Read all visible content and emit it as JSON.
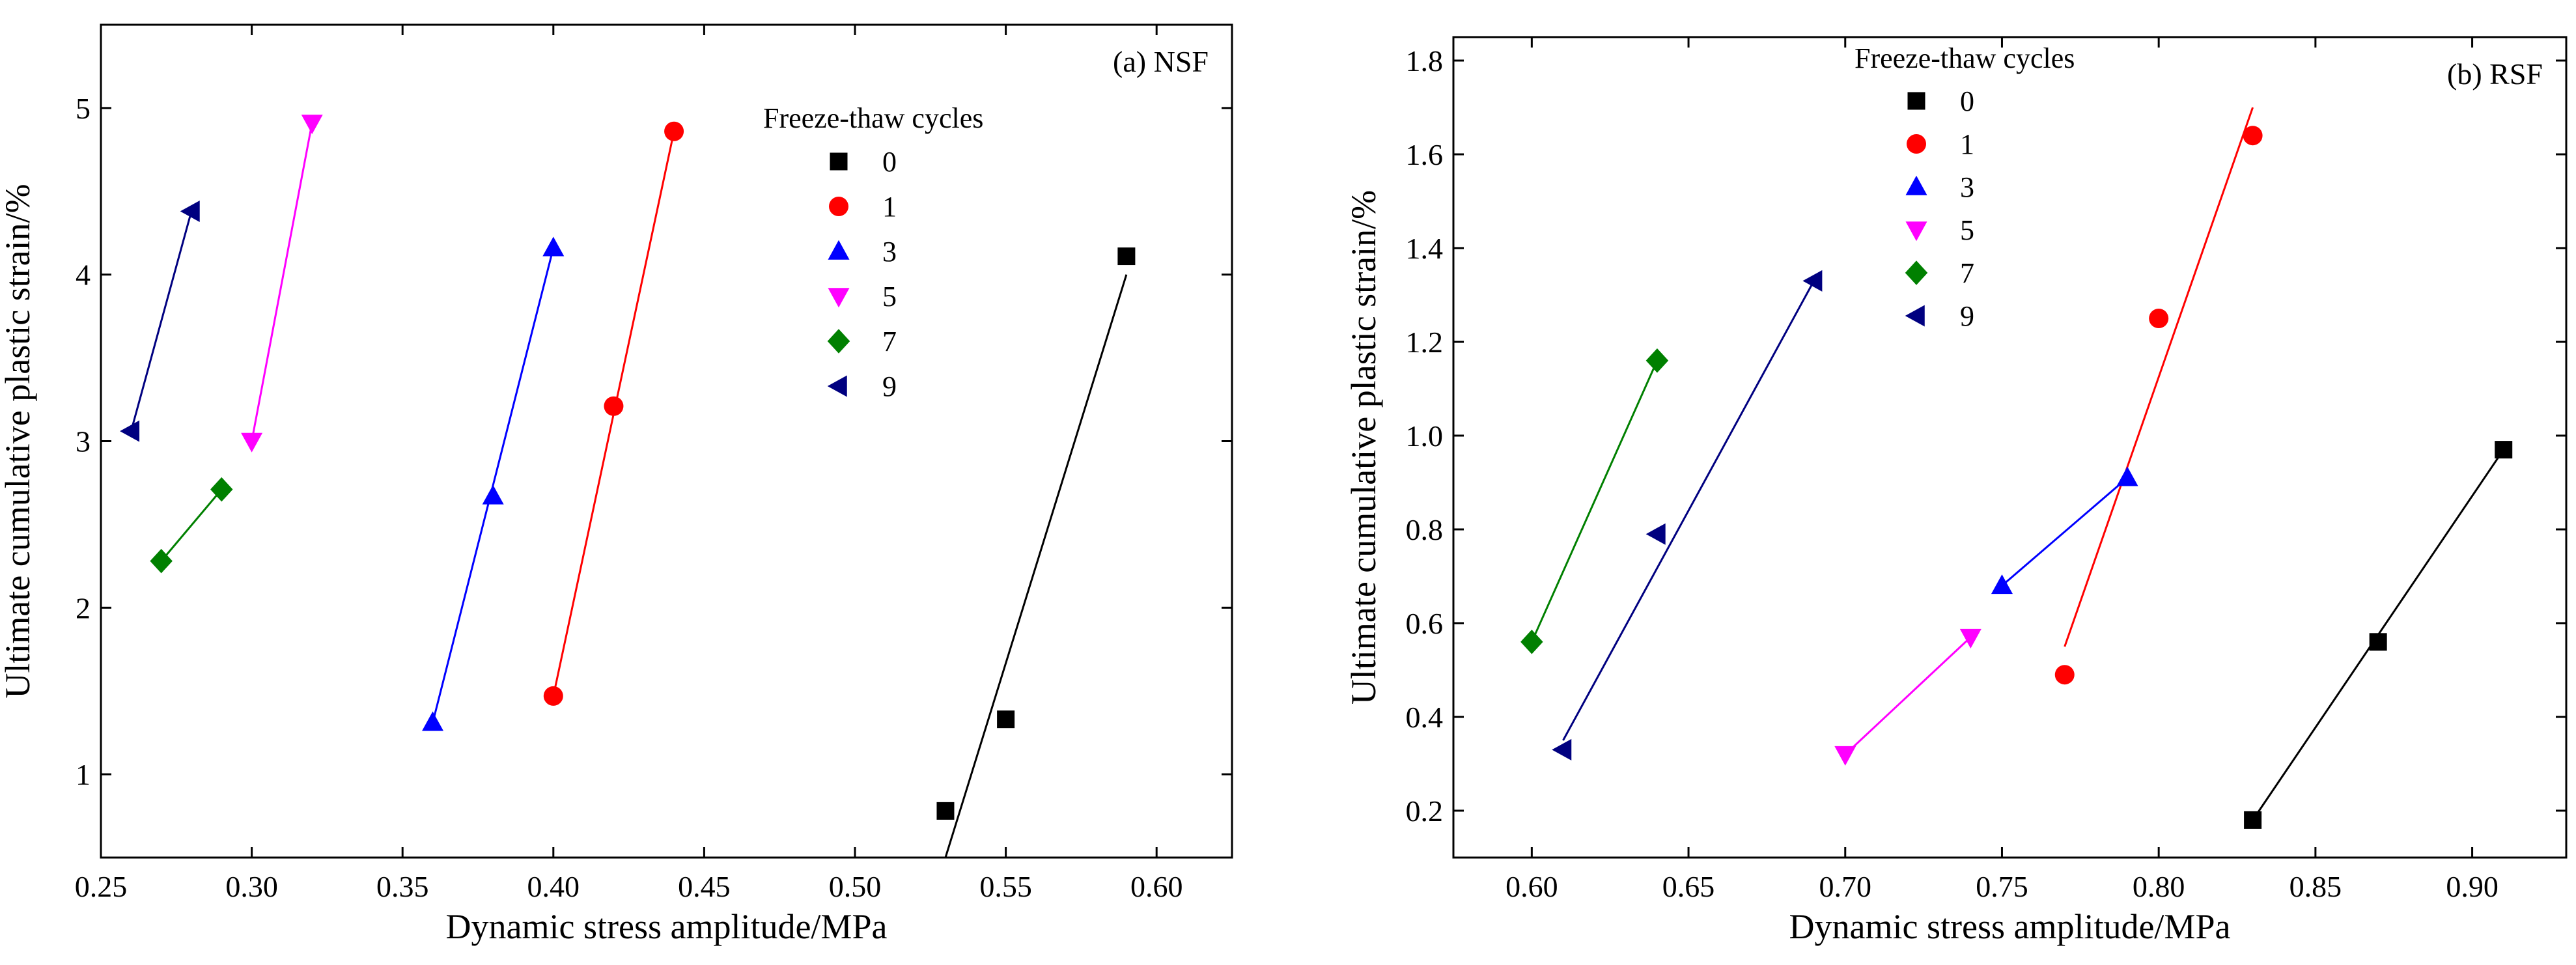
{
  "chart_data": [
    {
      "type": "scatter",
      "panel_label": "(a) NSF",
      "xlabel": "Dynamic stress amplitude/MPa",
      "ylabel": "Ultimate cumulative plastic strain/%",
      "xlim": [
        0.25,
        0.625
      ],
      "ylim": [
        0.5,
        5.5
      ],
      "xticks": [
        "0.25",
        "0.30",
        "0.35",
        "0.40",
        "0.45",
        "0.50",
        "0.55",
        "0.60"
      ],
      "yticks": [
        "1",
        "2",
        "3",
        "4",
        "5"
      ],
      "legend_title": "Freeze-thaw cycles",
      "legend_position": "top-right",
      "series": [
        {
          "name": "0",
          "color": "#000000",
          "marker": "square",
          "points": [
            [
              0.53,
              0.78
            ],
            [
              0.55,
              1.33
            ],
            [
              0.59,
              4.11
            ]
          ],
          "fit": [
            [
              0.53,
              0.5
            ],
            [
              0.59,
              4.0
            ]
          ]
        },
        {
          "name": "1",
          "color": "#ff0000",
          "marker": "circle",
          "points": [
            [
              0.4,
              1.47
            ],
            [
              0.42,
              3.21
            ],
            [
              0.44,
              4.86
            ]
          ],
          "fit": [
            [
              0.4,
              1.47
            ],
            [
              0.44,
              4.86
            ]
          ]
        },
        {
          "name": "3",
          "color": "#0000ff",
          "marker": "triangle-up",
          "points": [
            [
              0.36,
              1.31
            ],
            [
              0.38,
              2.67
            ],
            [
              0.4,
              4.16
            ]
          ],
          "fit": [
            [
              0.36,
              1.31
            ],
            [
              0.4,
              4.16
            ]
          ]
        },
        {
          "name": "5",
          "color": "#ff00ff",
          "marker": "triangle-down",
          "points": [
            [
              0.3,
              3.0
            ],
            [
              0.32,
              4.91
            ]
          ],
          "fit": [
            [
              0.3,
              3.0
            ],
            [
              0.32,
              4.91
            ]
          ]
        },
        {
          "name": "7",
          "color": "#008000",
          "marker": "diamond",
          "points": [
            [
              0.27,
              2.28
            ],
            [
              0.29,
              2.71
            ]
          ],
          "fit": [
            [
              0.27,
              2.28
            ],
            [
              0.29,
              2.71
            ]
          ]
        },
        {
          "name": "9",
          "color": "#000080",
          "marker": "triangle-left",
          "points": [
            [
              0.26,
              3.06
            ],
            [
              0.28,
              4.38
            ]
          ],
          "fit": [
            [
              0.26,
              3.06
            ],
            [
              0.28,
              4.38
            ]
          ]
        }
      ]
    },
    {
      "type": "scatter",
      "panel_label": "(b) RSF",
      "xlabel": "Dynamic stress amplitude/MPa",
      "ylabel": "Ultimate cumulative plastic strain/%",
      "xlim": [
        0.575,
        0.93
      ],
      "ylim": [
        0.1,
        1.85
      ],
      "xticks": [
        "0.60",
        "0.65",
        "0.70",
        "0.75",
        "0.80",
        "0.85",
        "0.90"
      ],
      "yticks": [
        "0.2",
        "0.4",
        "0.6",
        "0.8",
        "1.0",
        "1.2",
        "1.4",
        "1.6",
        "1.8"
      ],
      "legend_title": "Freeze-thaw cycles",
      "legend_position": "top-center",
      "series": [
        {
          "name": "0",
          "color": "#000000",
          "marker": "square",
          "points": [
            [
              0.83,
              0.18
            ],
            [
              0.87,
              0.56
            ],
            [
              0.91,
              0.97
            ]
          ],
          "fit": [
            [
              0.83,
              0.18
            ],
            [
              0.91,
              0.97
            ]
          ]
        },
        {
          "name": "1",
          "color": "#ff0000",
          "marker": "circle",
          "points": [
            [
              0.77,
              0.49
            ],
            [
              0.8,
              1.25
            ],
            [
              0.83,
              1.64
            ]
          ],
          "fit": [
            [
              0.77,
              0.55
            ],
            [
              0.83,
              1.7
            ]
          ]
        },
        {
          "name": "3",
          "color": "#0000ff",
          "marker": "triangle-up",
          "points": [
            [
              0.75,
              0.68
            ],
            [
              0.79,
              0.91
            ]
          ],
          "fit": [
            [
              0.75,
              0.68
            ],
            [
              0.79,
              0.91
            ]
          ]
        },
        {
          "name": "5",
          "color": "#ff00ff",
          "marker": "triangle-down",
          "points": [
            [
              0.7,
              0.32
            ],
            [
              0.74,
              0.57
            ]
          ],
          "fit": [
            [
              0.7,
              0.32
            ],
            [
              0.74,
              0.57
            ]
          ]
        },
        {
          "name": "7",
          "color": "#008000",
          "marker": "diamond",
          "points": [
            [
              0.6,
              0.56
            ],
            [
              0.64,
              1.16
            ]
          ],
          "fit": [
            [
              0.6,
              0.56
            ],
            [
              0.64,
              1.16
            ]
          ]
        },
        {
          "name": "9",
          "color": "#000080",
          "marker": "triangle-left",
          "points": [
            [
              0.61,
              0.33
            ],
            [
              0.64,
              0.79
            ],
            [
              0.69,
              1.33
            ]
          ],
          "fit": [
            [
              0.61,
              0.35
            ],
            [
              0.69,
              1.33
            ]
          ]
        }
      ]
    }
  ]
}
